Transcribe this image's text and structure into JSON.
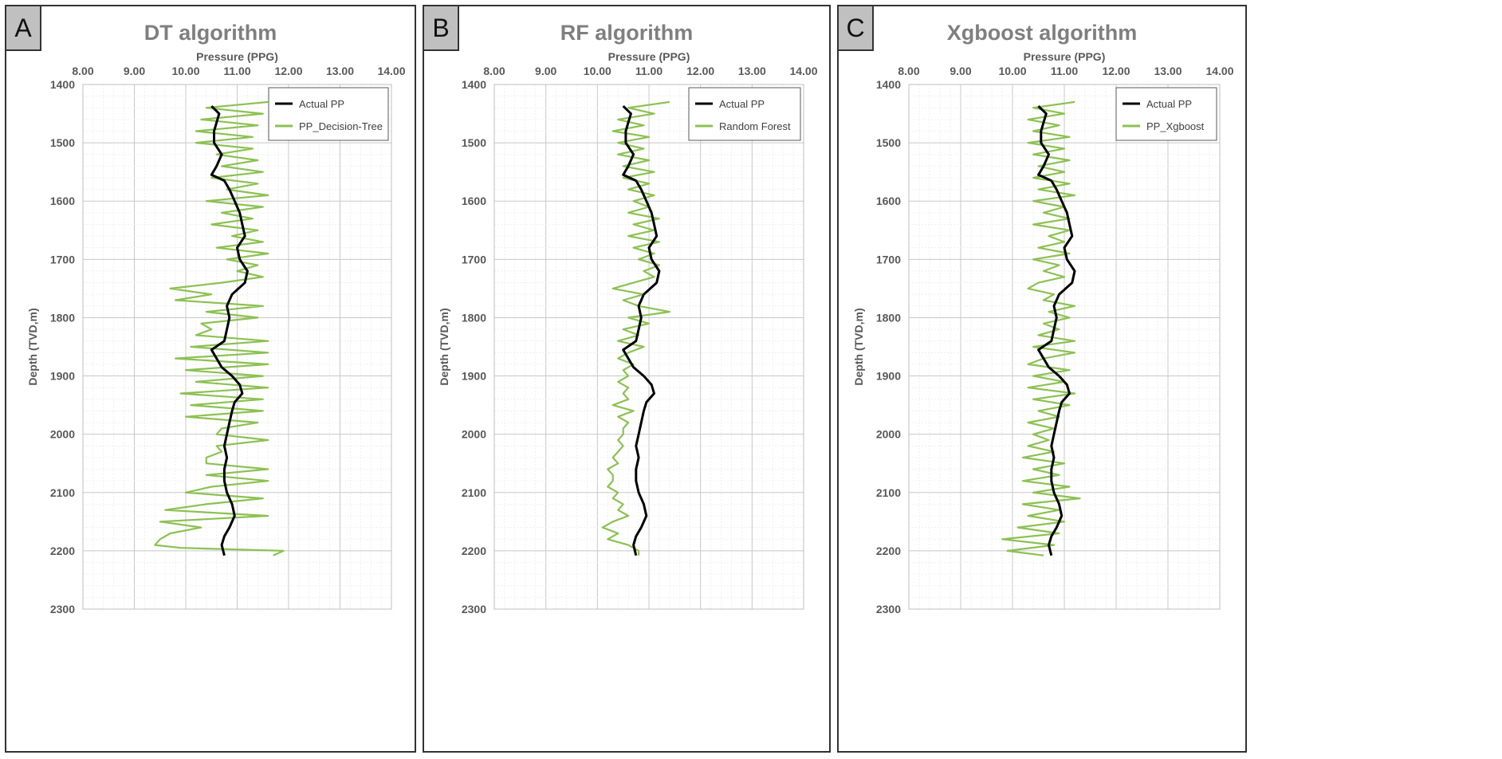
{
  "chart_data": [
    {
      "panel_label": "A",
      "type": "line",
      "title": "DT algorithm",
      "xlabel": "Pressure (PPG)",
      "ylabel": "Depth (TVD,m)",
      "xlim": [
        8,
        14
      ],
      "ylim": [
        1400,
        2300
      ],
      "y_inverted": true,
      "x_ticks": [
        "8.00",
        "9.00",
        "10.00",
        "11.00",
        "12.00",
        "13.00",
        "14.00"
      ],
      "y_ticks": [
        "1400",
        "1500",
        "1600",
        "1700",
        "1800",
        "1900",
        "2000",
        "2100",
        "2200",
        "2300"
      ],
      "grid": true,
      "legend_position": "top-right",
      "series": [
        {
          "name": "Actual PP",
          "color": "#000000",
          "depth": [
            1437,
            1450,
            1465,
            1480,
            1500,
            1520,
            1540,
            1555,
            1565,
            1580,
            1600,
            1620,
            1640,
            1660,
            1680,
            1700,
            1720,
            1740,
            1760,
            1780,
            1800,
            1820,
            1840,
            1855,
            1870,
            1885,
            1900,
            1915,
            1930,
            1945,
            1960,
            1980,
            2000,
            2020,
            2040,
            2060,
            2080,
            2100,
            2120,
            2140,
            2160,
            2175,
            2190,
            2208
          ],
          "pressure": [
            10.5,
            10.65,
            10.6,
            10.55,
            10.55,
            10.7,
            10.6,
            10.5,
            10.75,
            10.85,
            10.95,
            11.05,
            11.1,
            11.15,
            11.0,
            11.05,
            11.2,
            11.15,
            10.9,
            10.8,
            10.85,
            10.8,
            10.75,
            10.5,
            10.6,
            10.7,
            10.9,
            11.05,
            11.1,
            10.95,
            10.9,
            10.85,
            10.8,
            10.75,
            10.8,
            10.75,
            10.75,
            10.8,
            10.9,
            10.95,
            10.85,
            10.75,
            10.7,
            10.75
          ]
        },
        {
          "name": "PP_Decision-Tree",
          "color": "#8cc152",
          "depth": [
            1430,
            1440,
            1450,
            1460,
            1470,
            1480,
            1490,
            1500,
            1510,
            1520,
            1530,
            1540,
            1550,
            1560,
            1570,
            1580,
            1590,
            1600,
            1610,
            1620,
            1630,
            1640,
            1650,
            1660,
            1670,
            1680,
            1690,
            1700,
            1710,
            1720,
            1730,
            1740,
            1750,
            1760,
            1770,
            1780,
            1790,
            1800,
            1810,
            1820,
            1830,
            1840,
            1850,
            1860,
            1870,
            1880,
            1890,
            1900,
            1910,
            1920,
            1930,
            1940,
            1950,
            1960,
            1970,
            1980,
            1990,
            2000,
            2010,
            2020,
            2030,
            2040,
            2050,
            2060,
            2070,
            2080,
            2090,
            2100,
            2110,
            2120,
            2130,
            2140,
            2150,
            2160,
            2170,
            2180,
            2190,
            2195,
            2200,
            2208
          ],
          "pressure": [
            11.6,
            10.4,
            11.5,
            10.3,
            11.4,
            10.2,
            11.3,
            10.2,
            11.3,
            10.6,
            11.4,
            10.7,
            11.5,
            10.5,
            11.4,
            10.8,
            11.6,
            10.4,
            11.5,
            10.7,
            11.3,
            10.5,
            11.4,
            10.9,
            11.5,
            10.6,
            11.6,
            10.8,
            11.4,
            11.0,
            11.5,
            10.7,
            9.7,
            10.5,
            9.8,
            11.5,
            10.4,
            11.4,
            10.3,
            10.5,
            10.2,
            11.6,
            10.1,
            11.6,
            9.8,
            11.6,
            10.0,
            11.5,
            10.2,
            11.6,
            9.9,
            11.5,
            10.1,
            11.5,
            10.0,
            11.4,
            10.7,
            10.6,
            11.6,
            10.6,
            10.7,
            10.4,
            10.4,
            11.6,
            10.4,
            11.6,
            10.5,
            10.0,
            11.5,
            10.4,
            9.6,
            11.6,
            9.5,
            10.3,
            9.7,
            9.5,
            9.4,
            9.9,
            11.9,
            11.7
          ]
        }
      ]
    },
    {
      "panel_label": "B",
      "type": "line",
      "title": "RF algorithm",
      "xlabel": "Pressure (PPG)",
      "ylabel": "Depth (TVD,m)",
      "xlim": [
        8,
        14
      ],
      "ylim": [
        1400,
        2300
      ],
      "y_inverted": true,
      "x_ticks": [
        "8.00",
        "9.00",
        "10.00",
        "11.00",
        "12.00",
        "13.00",
        "14.00"
      ],
      "y_ticks": [
        "1400",
        "1500",
        "1600",
        "1700",
        "1800",
        "1900",
        "2000",
        "2100",
        "2200",
        "2300"
      ],
      "grid": true,
      "legend_position": "top-right",
      "series": [
        {
          "name": "Actual PP",
          "color": "#000000",
          "depth": [
            1437,
            1450,
            1465,
            1480,
            1500,
            1520,
            1540,
            1555,
            1565,
            1580,
            1600,
            1620,
            1640,
            1660,
            1680,
            1700,
            1720,
            1740,
            1760,
            1780,
            1800,
            1820,
            1840,
            1855,
            1870,
            1885,
            1900,
            1915,
            1930,
            1945,
            1960,
            1980,
            2000,
            2020,
            2040,
            2060,
            2080,
            2100,
            2120,
            2140,
            2160,
            2175,
            2190,
            2208
          ],
          "pressure": [
            10.5,
            10.65,
            10.6,
            10.55,
            10.55,
            10.7,
            10.6,
            10.5,
            10.75,
            10.85,
            10.95,
            11.05,
            11.1,
            11.15,
            11.0,
            11.05,
            11.2,
            11.15,
            10.9,
            10.8,
            10.85,
            10.8,
            10.75,
            10.5,
            10.6,
            10.7,
            10.9,
            11.05,
            11.1,
            10.95,
            10.9,
            10.85,
            10.8,
            10.75,
            10.8,
            10.75,
            10.75,
            10.8,
            10.9,
            10.95,
            10.85,
            10.75,
            10.7,
            10.75
          ]
        },
        {
          "name": "Random Forest",
          "color": "#8cc152",
          "depth": [
            1430,
            1440,
            1450,
            1460,
            1470,
            1480,
            1490,
            1500,
            1510,
            1520,
            1530,
            1540,
            1550,
            1560,
            1570,
            1580,
            1590,
            1600,
            1610,
            1620,
            1630,
            1640,
            1650,
            1660,
            1670,
            1680,
            1690,
            1700,
            1710,
            1720,
            1730,
            1740,
            1750,
            1760,
            1770,
            1780,
            1790,
            1800,
            1810,
            1820,
            1830,
            1840,
            1850,
            1860,
            1870,
            1880,
            1890,
            1900,
            1910,
            1920,
            1930,
            1940,
            1950,
            1960,
            1970,
            1980,
            1990,
            2000,
            2010,
            2020,
            2030,
            2040,
            2050,
            2060,
            2070,
            2080,
            2090,
            2100,
            2110,
            2120,
            2130,
            2140,
            2150,
            2160,
            2170,
            2180,
            2190,
            2200,
            2208
          ],
          "pressure": [
            11.4,
            10.6,
            11.1,
            10.4,
            10.9,
            10.3,
            11.0,
            10.4,
            10.9,
            10.4,
            11.0,
            10.5,
            11.1,
            10.5,
            11.0,
            10.6,
            11.1,
            10.7,
            11.0,
            10.6,
            11.2,
            10.7,
            11.1,
            10.6,
            11.2,
            10.7,
            11.1,
            10.8,
            11.2,
            10.9,
            11.1,
            10.7,
            10.3,
            10.9,
            10.5,
            10.8,
            11.4,
            10.6,
            11.0,
            10.5,
            10.8,
            10.4,
            10.9,
            10.6,
            10.4,
            10.7,
            10.5,
            10.6,
            10.4,
            10.6,
            10.5,
            10.6,
            10.3,
            10.7,
            10.4,
            10.6,
            10.5,
            10.5,
            10.4,
            10.5,
            10.4,
            10.3,
            10.4,
            10.2,
            10.3,
            10.3,
            10.2,
            10.4,
            10.3,
            10.5,
            10.4,
            10.6,
            10.3,
            10.1,
            10.4,
            10.2,
            10.6,
            10.8,
            10.8
          ]
        }
      ]
    },
    {
      "panel_label": "C",
      "type": "line",
      "title": "Xgboost algorithm",
      "xlabel": "Pressure (PPG)",
      "ylabel": "Depth (TVD,m)",
      "xlim": [
        8,
        14
      ],
      "ylim": [
        1400,
        2300
      ],
      "y_inverted": true,
      "x_ticks": [
        "8.00",
        "9.00",
        "10.00",
        "11.00",
        "12.00",
        "13.00",
        "14.00"
      ],
      "y_ticks": [
        "1400",
        "1500",
        "1600",
        "1700",
        "1800",
        "1900",
        "2000",
        "2100",
        "2200",
        "2300"
      ],
      "grid": true,
      "legend_position": "top-right",
      "series": [
        {
          "name": "Actual PP",
          "color": "#000000",
          "depth": [
            1437,
            1450,
            1465,
            1480,
            1500,
            1520,
            1540,
            1555,
            1565,
            1580,
            1600,
            1620,
            1640,
            1660,
            1680,
            1700,
            1720,
            1740,
            1760,
            1780,
            1800,
            1820,
            1840,
            1855,
            1870,
            1885,
            1900,
            1915,
            1930,
            1945,
            1960,
            1980,
            2000,
            2020,
            2040,
            2060,
            2080,
            2100,
            2120,
            2140,
            2160,
            2175,
            2190,
            2208
          ],
          "pressure": [
            10.5,
            10.65,
            10.6,
            10.55,
            10.55,
            10.7,
            10.6,
            10.5,
            10.75,
            10.85,
            10.95,
            11.05,
            11.1,
            11.15,
            11.0,
            11.05,
            11.2,
            11.15,
            10.9,
            10.8,
            10.85,
            10.8,
            10.75,
            10.5,
            10.6,
            10.7,
            10.9,
            11.05,
            11.1,
            10.95,
            10.9,
            10.85,
            10.8,
            10.75,
            10.8,
            10.75,
            10.75,
            10.8,
            10.9,
            10.95,
            10.85,
            10.75,
            10.7,
            10.75
          ]
        },
        {
          "name": "PP_Xgboost",
          "color": "#8cc152",
          "depth": [
            1430,
            1440,
            1450,
            1460,
            1470,
            1480,
            1490,
            1500,
            1510,
            1520,
            1530,
            1540,
            1550,
            1560,
            1570,
            1580,
            1590,
            1600,
            1610,
            1620,
            1630,
            1640,
            1650,
            1660,
            1670,
            1680,
            1690,
            1700,
            1710,
            1720,
            1730,
            1740,
            1750,
            1760,
            1770,
            1780,
            1790,
            1800,
            1810,
            1820,
            1830,
            1840,
            1850,
            1860,
            1870,
            1880,
            1890,
            1900,
            1910,
            1920,
            1930,
            1940,
            1950,
            1960,
            1970,
            1980,
            1990,
            2000,
            2010,
            2020,
            2030,
            2040,
            2050,
            2060,
            2070,
            2080,
            2090,
            2100,
            2110,
            2120,
            2130,
            2140,
            2150,
            2160,
            2170,
            2180,
            2190,
            2200,
            2208
          ],
          "pressure": [
            11.2,
            10.4,
            11.0,
            10.3,
            10.9,
            10.4,
            11.1,
            10.3,
            11.0,
            10.4,
            11.1,
            10.5,
            11.0,
            10.4,
            11.1,
            10.5,
            11.2,
            10.4,
            11.0,
            10.6,
            11.1,
            10.4,
            11.1,
            10.7,
            11.0,
            10.5,
            11.1,
            10.4,
            10.9,
            10.6,
            11.0,
            10.5,
            10.3,
            10.8,
            10.6,
            11.2,
            10.7,
            11.1,
            10.6,
            10.9,
            10.5,
            11.2,
            10.4,
            11.2,
            10.6,
            10.3,
            11.1,
            10.4,
            11.0,
            10.3,
            11.2,
            10.4,
            11.1,
            10.5,
            10.9,
            10.3,
            10.8,
            10.4,
            10.7,
            10.3,
            10.8,
            10.2,
            11.0,
            10.4,
            10.9,
            10.2,
            11.1,
            10.4,
            11.3,
            10.2,
            10.9,
            10.3,
            11.0,
            10.1,
            10.9,
            9.8,
            10.8,
            9.9,
            10.6
          ]
        }
      ]
    }
  ]
}
